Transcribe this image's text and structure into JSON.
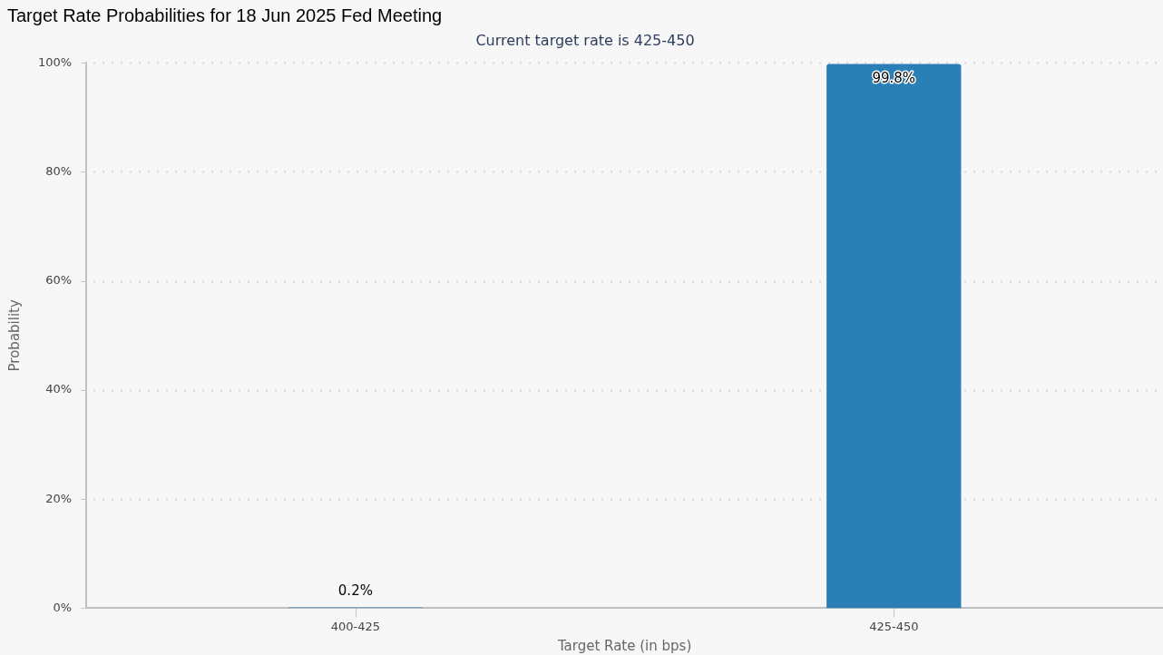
{
  "chart_data": {
    "type": "bar",
    "title": "Target Rate Probabilities for 18 Jun 2025 Fed Meeting",
    "subtitle": "Current target rate is 425-450",
    "xlabel": "Target Rate (in bps)",
    "ylabel": "Probability",
    "categories": [
      "400-425",
      "425-450"
    ],
    "values": [
      0.2,
      99.8
    ],
    "colors": [
      "#6b9dc4",
      "#2a7fb6"
    ],
    "value_labels": [
      "0.2%",
      "99.8%"
    ],
    "ylim": [
      0,
      100
    ],
    "yticks": [
      {
        "value": 0,
        "label": "0%"
      },
      {
        "value": 20,
        "label": "20%"
      },
      {
        "value": 40,
        "label": "40%"
      },
      {
        "value": 60,
        "label": "60%"
      },
      {
        "value": 80,
        "label": "80%"
      },
      {
        "value": 100,
        "label": "100%"
      }
    ],
    "grid": "y",
    "legend": false
  }
}
